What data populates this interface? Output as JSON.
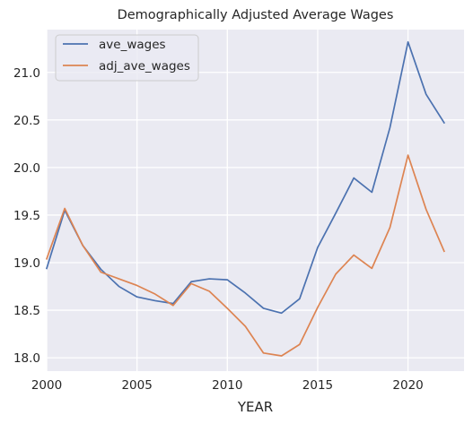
{
  "chart_data": {
    "type": "line",
    "title": "Demographically Adjusted Average Wages",
    "xlabel": "YEAR",
    "ylabel": "",
    "x": [
      2000,
      2001,
      2002,
      2003,
      2004,
      2005,
      2006,
      2007,
      2008,
      2009,
      2010,
      2011,
      2012,
      2013,
      2014,
      2015,
      2016,
      2017,
      2018,
      2019,
      2020,
      2021,
      2022
    ],
    "series": [
      {
        "name": "ave_wages",
        "color": "#4c72b0",
        "values": [
          18.94,
          19.55,
          19.18,
          18.93,
          18.75,
          18.64,
          18.6,
          18.57,
          18.8,
          18.83,
          18.82,
          18.68,
          18.52,
          18.47,
          18.62,
          19.16,
          19.52,
          19.89,
          19.74,
          20.42,
          21.32,
          20.77,
          20.47
        ]
      },
      {
        "name": "adj_ave_wages",
        "color": "#dd8452",
        "values": [
          19.04,
          19.57,
          19.18,
          18.9,
          18.83,
          18.76,
          18.67,
          18.55,
          18.78,
          18.7,
          18.52,
          18.33,
          18.05,
          18.02,
          18.14,
          18.53,
          18.88,
          19.08,
          18.94,
          19.37,
          20.13,
          19.56,
          19.12
        ]
      }
    ],
    "xlim": [
      2000,
      2023.1
    ],
    "ylim": [
      17.86,
      21.45
    ],
    "xticks": [
      2000,
      2005,
      2010,
      2015,
      2020
    ],
    "yticks": [
      18.0,
      18.5,
      19.0,
      19.5,
      20.0,
      20.5,
      21.0
    ],
    "xtick_labels": [
      "2000",
      "2005",
      "2010",
      "2015",
      "2020"
    ],
    "ytick_labels": [
      "18.0",
      "18.5",
      "19.0",
      "19.5",
      "20.0",
      "20.5",
      "21.0"
    ],
    "grid": true,
    "legend_position": "top-left",
    "background_color": "#eaeaf2",
    "grid_color": "#ffffff"
  }
}
